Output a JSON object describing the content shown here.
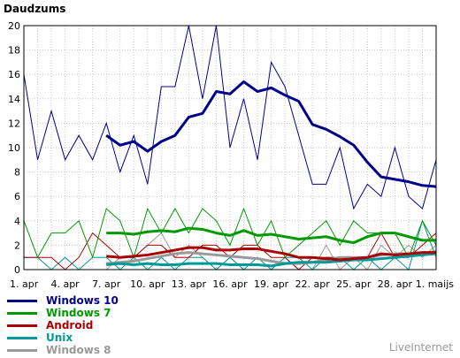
{
  "chart_data": {
    "type": "line",
    "ylabel": "Daudzums",
    "ylim": [
      0,
      20
    ],
    "yticks": [
      "0",
      "2",
      "4",
      "6",
      "8",
      "10",
      "12",
      "14",
      "16",
      "18",
      "20"
    ],
    "x_tick_labels": [
      "1. apr",
      "4. apr",
      "7. apr",
      "10. apr",
      "13. apr",
      "16. apr",
      "19. apr",
      "22. apr",
      "25. apr",
      "28. apr",
      "1. maijs"
    ],
    "x_tick_indices": [
      0,
      3,
      6,
      9,
      12,
      15,
      18,
      21,
      24,
      27,
      30
    ],
    "grid": true,
    "series": [
      {
        "name": "Windows 10",
        "color": "#00008b",
        "daily": [
          16,
          9,
          13,
          9,
          11,
          9,
          12,
          8,
          11,
          7,
          15,
          15,
          20,
          14,
          20,
          10,
          14,
          9,
          17,
          15,
          11,
          7,
          7,
          10,
          5,
          7,
          6,
          10,
          6,
          5,
          9
        ],
        "trend": [
          null,
          null,
          null,
          null,
          null,
          null,
          11,
          10.2,
          10.5,
          9.7,
          10.5,
          11,
          12.5,
          12.8,
          14.6,
          14.4,
          15.4,
          14.6,
          14.9,
          14.3,
          13.8,
          11.9,
          11.5,
          10.9,
          10.2,
          8.8,
          7.6,
          7.4,
          7.2,
          6.9,
          6.8
        ]
      },
      {
        "name": "Windows 7",
        "color": "#009900",
        "daily": [
          4,
          1,
          3,
          3,
          4,
          1,
          5,
          4,
          1,
          5,
          3,
          5,
          3,
          5,
          4,
          2,
          5,
          2,
          4,
          1,
          2,
          3,
          4,
          2,
          4,
          3,
          3,
          3,
          1,
          4,
          2
        ],
        "trend": [
          null,
          null,
          null,
          null,
          null,
          null,
          3,
          3,
          2.9,
          3.1,
          3.2,
          3.1,
          3.4,
          3.3,
          3,
          2.8,
          3.2,
          2.8,
          2.9,
          2.7,
          2.5,
          2.6,
          2.7,
          2.4,
          2.2,
          2.7,
          3,
          3,
          2.7,
          2.4,
          2.4
        ]
      },
      {
        "name": "Android",
        "color": "#aa0000",
        "daily": [
          1,
          1,
          1,
          0,
          1,
          3,
          2,
          1,
          1,
          2,
          2,
          1,
          1,
          2,
          2,
          1,
          2,
          2,
          1,
          1,
          0,
          1,
          1,
          1,
          1,
          1,
          3,
          1,
          1,
          2,
          3
        ],
        "trend": [
          null,
          null,
          null,
          null,
          null,
          null,
          1.1,
          1,
          1.1,
          1.2,
          1.4,
          1.6,
          1.8,
          1.8,
          1.6,
          1.6,
          1.7,
          1.7,
          1.5,
          1.3,
          1,
          1,
          0.9,
          0.8,
          0.9,
          1,
          1.3,
          1.2,
          1.3,
          1.4,
          1.4
        ]
      },
      {
        "name": "Unix",
        "color": "#009999",
        "daily": [
          1,
          1,
          0,
          1,
          0,
          1,
          1,
          0,
          1,
          0,
          1,
          0,
          1,
          1,
          0,
          1,
          0,
          1,
          0,
          1,
          1,
          0,
          1,
          1,
          0,
          1,
          0,
          1,
          0,
          4,
          1
        ],
        "trend": [
          null,
          null,
          null,
          null,
          null,
          null,
          0.4,
          0.5,
          0.4,
          0.5,
          0.4,
          0.4,
          0.5,
          0.5,
          0.5,
          0.4,
          0.4,
          0.4,
          0.3,
          0.5,
          0.6,
          0.6,
          0.6,
          0.7,
          0.8,
          0.8,
          0.9,
          1,
          1.1,
          1.2,
          1.3
        ]
      },
      {
        "name": "Windows 8",
        "color": "#999999",
        "daily": [
          0,
          0,
          0,
          0,
          0,
          0,
          0,
          1,
          1,
          2,
          3,
          1,
          2,
          1,
          0,
          1,
          0,
          0,
          0,
          1,
          0,
          0,
          2,
          0,
          1,
          0,
          2,
          1,
          2,
          1,
          2
        ],
        "trend": [
          null,
          null,
          null,
          null,
          null,
          null,
          0.5,
          0.6,
          0.7,
          0.9,
          1.1,
          1.3,
          1.4,
          1.3,
          1.2,
          1.1,
          1,
          0.9,
          0.7,
          0.5,
          0.5,
          0.6,
          0.8,
          1,
          1,
          1,
          1.2,
          1.3,
          1.3,
          1.3,
          1.5
        ]
      }
    ]
  },
  "brand": "LiveInternet"
}
